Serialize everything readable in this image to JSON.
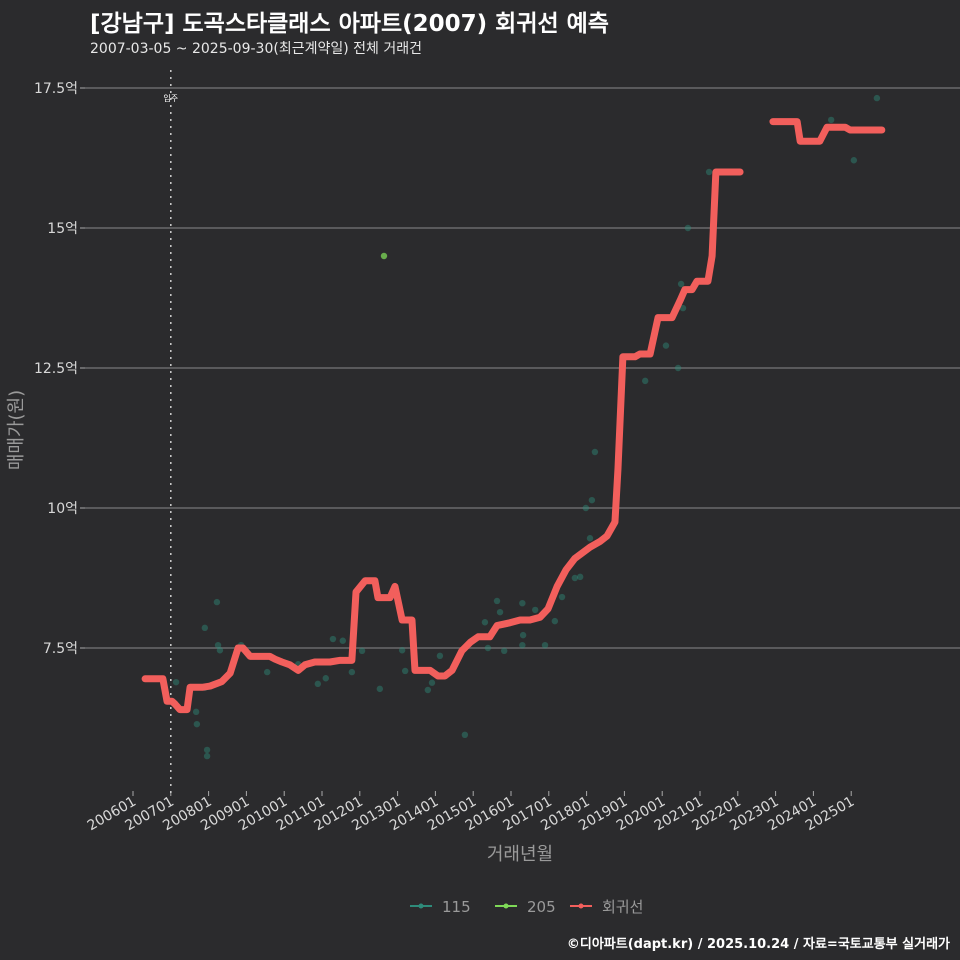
{
  "title": "[강남구] 도곡스타클래스 아파트(2007) 회귀선 예측",
  "subtitle": "2007-03-05 ~ 2025-09-30(최근계약일) 전체 거래건",
  "footer": "©디아파트(dapt.kr) / 2025.10.24 / 자료=국토교통부 실거래가",
  "chart_data": {
    "type": "scatter",
    "xlabel": "거래년월",
    "ylabel": "매매가(원)",
    "ylim": [
      5.2,
      17.8
    ],
    "xlim": [
      2005.4,
      2026.3
    ],
    "grid": true,
    "legend_position": "bottom",
    "y_ticks": [
      {
        "v": 7.5,
        "label": "7.5억"
      },
      {
        "v": 10,
        "label": "10억"
      },
      {
        "v": 12.5,
        "label": "12.5억"
      },
      {
        "v": 15,
        "label": "15억"
      },
      {
        "v": 17.5,
        "label": "17.5억"
      }
    ],
    "x_ticks": [
      "200601",
      "200701",
      "200801",
      "200901",
      "201001",
      "201101",
      "201201",
      "201301",
      "201401",
      "201501",
      "201601",
      "201701",
      "201801",
      "201901",
      "202001",
      "202101",
      "202201",
      "202301",
      "202401",
      "202501"
    ],
    "annotation": {
      "label": "입주",
      "x": 2007.0
    },
    "colors": {
      "115": "#2e8b7a",
      "205": "#7ed957",
      "회귀선": "#f25f5c"
    },
    "legend": [
      "115",
      "205",
      "회귀선"
    ],
    "series": [
      {
        "name": "115",
        "type": "scatter",
        "points": [
          [
            2007.14,
            6.89
          ],
          [
            2007.67,
            6.36
          ],
          [
            2007.69,
            6.14
          ],
          [
            2007.96,
            5.68
          ],
          [
            2007.96,
            5.57
          ],
          [
            2007.9,
            7.86
          ],
          [
            2008.22,
            8.32
          ],
          [
            2008.25,
            7.55
          ],
          [
            2008.3,
            7.46
          ],
          [
            2007.9,
            6.79
          ],
          [
            2008.86,
            7.55
          ],
          [
            2009.55,
            7.07
          ],
          [
            2010.37,
            7.21
          ],
          [
            2010.89,
            6.86
          ],
          [
            2011.1,
            6.96
          ],
          [
            2011.29,
            7.66
          ],
          [
            2011.55,
            7.63
          ],
          [
            2011.79,
            7.07
          ],
          [
            2012.06,
            7.45
          ],
          [
            2012.53,
            6.77
          ],
          [
            2013.12,
            7.46
          ],
          [
            2013.2,
            7.09
          ],
          [
            2013.8,
            6.75
          ],
          [
            2013.91,
            6.88
          ],
          [
            2014.12,
            7.36
          ],
          [
            2014.78,
            5.95
          ],
          [
            2015.31,
            7.96
          ],
          [
            2015.39,
            7.5
          ],
          [
            2015.63,
            8.34
          ],
          [
            2015.71,
            8.14
          ],
          [
            2015.82,
            7.45
          ],
          [
            2016.3,
            8.3
          ],
          [
            2016.32,
            7.73
          ],
          [
            2016.3,
            7.55
          ],
          [
            2016.64,
            8.18
          ],
          [
            2016.9,
            7.55
          ],
          [
            2017.16,
            7.98
          ],
          [
            2017.35,
            8.41
          ],
          [
            2017.69,
            8.75
          ],
          [
            2017.83,
            8.77
          ],
          [
            2017.98,
            10.0
          ],
          [
            2018.09,
            9.46
          ],
          [
            2018.14,
            10.14
          ],
          [
            2018.22,
            11.0
          ],
          [
            2019.55,
            12.27
          ],
          [
            2020.1,
            12.9
          ],
          [
            2020.42,
            12.5
          ],
          [
            2020.5,
            14.0
          ],
          [
            2020.55,
            13.57
          ],
          [
            2020.68,
            15.0
          ],
          [
            2021.24,
            16.0
          ],
          [
            2024.47,
            16.93
          ],
          [
            2025.07,
            16.21
          ],
          [
            2025.68,
            17.32
          ]
        ]
      },
      {
        "name": "205",
        "type": "scatter",
        "points": [
          [
            2012.64,
            14.5
          ]
        ]
      },
      {
        "name": "회귀선",
        "type": "line",
        "segments": [
          [
            [
              2006.32,
              6.95
            ],
            [
              2006.79,
              6.95
            ],
            [
              2006.9,
              6.55
            ],
            [
              2007.03,
              6.55
            ],
            [
              2007.11,
              6.5
            ],
            [
              2007.24,
              6.4
            ],
            [
              2007.43,
              6.4
            ],
            [
              2007.51,
              6.8
            ],
            [
              2007.85,
              6.8
            ],
            [
              2008.04,
              6.82
            ],
            [
              2008.35,
              6.9
            ],
            [
              2008.57,
              7.05
            ],
            [
              2008.78,
              7.5
            ],
            [
              2008.91,
              7.5
            ],
            [
              2009.1,
              7.35
            ],
            [
              2009.62,
              7.35
            ],
            [
              2009.76,
              7.3
            ],
            [
              2009.94,
              7.25
            ],
            [
              2010.15,
              7.2
            ],
            [
              2010.37,
              7.1
            ],
            [
              2010.55,
              7.2
            ],
            [
              2010.81,
              7.25
            ],
            [
              2011.21,
              7.25
            ],
            [
              2011.48,
              7.28
            ],
            [
              2011.79,
              7.28
            ],
            [
              2011.9,
              8.5
            ],
            [
              2012.14,
              8.7
            ],
            [
              2012.4,
              8.7
            ],
            [
              2012.48,
              8.4
            ],
            [
              2012.8,
              8.4
            ],
            [
              2012.93,
              8.6
            ],
            [
              2013.12,
              8.0
            ],
            [
              2013.38,
              8.0
            ],
            [
              2013.46,
              7.1
            ],
            [
              2013.86,
              7.1
            ],
            [
              2014.07,
              7.0
            ],
            [
              2014.25,
              7.0
            ],
            [
              2014.44,
              7.1
            ],
            [
              2014.7,
              7.45
            ],
            [
              2014.92,
              7.6
            ],
            [
              2015.13,
              7.7
            ],
            [
              2015.44,
              7.7
            ],
            [
              2015.63,
              7.9
            ],
            [
              2015.97,
              7.95
            ],
            [
              2016.24,
              8.0
            ],
            [
              2016.5,
              8.0
            ],
            [
              2016.77,
              8.05
            ],
            [
              2016.98,
              8.2
            ],
            [
              2017.22,
              8.6
            ],
            [
              2017.46,
              8.9
            ],
            [
              2017.69,
              9.1
            ],
            [
              2018.09,
              9.3
            ],
            [
              2018.35,
              9.4
            ],
            [
              2018.54,
              9.5
            ],
            [
              2018.75,
              9.75
            ],
            [
              2018.83,
              10.7
            ],
            [
              2018.96,
              12.7
            ],
            [
              2019.28,
              12.7
            ],
            [
              2019.41,
              12.75
            ],
            [
              2019.68,
              12.75
            ],
            [
              2019.89,
              13.4
            ],
            [
              2020.26,
              13.4
            ],
            [
              2020.47,
              13.7
            ],
            [
              2020.6,
              13.9
            ],
            [
              2020.79,
              13.9
            ],
            [
              2020.92,
              14.05
            ],
            [
              2021.21,
              14.05
            ],
            [
              2021.32,
              14.5
            ],
            [
              2021.42,
              16.0
            ],
            [
              2022.06,
              16.0
            ]
          ],
          [
            [
              2022.93,
              16.9
            ],
            [
              2023.57,
              16.9
            ],
            [
              2023.65,
              16.55
            ],
            [
              2024.17,
              16.55
            ],
            [
              2024.36,
              16.8
            ],
            [
              2024.84,
              16.8
            ],
            [
              2024.97,
              16.75
            ],
            [
              2025.81,
              16.75
            ]
          ]
        ]
      }
    ]
  }
}
